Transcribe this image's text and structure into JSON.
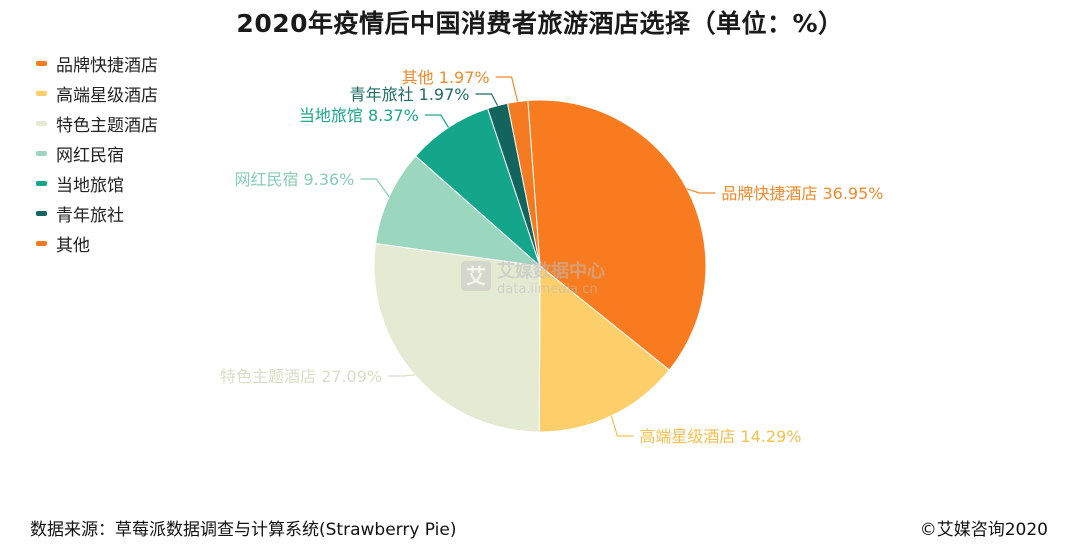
{
  "header": {
    "title": "2020年疫情后中国消费者旅游酒店选择（单位：%）"
  },
  "footer": {
    "source": "数据来源：草莓派数据调查与计算系统(Strawberry Pie)",
    "copyright": "©艾媒咨询2020"
  },
  "watermark": {
    "name": "艾媒数据中心",
    "url": "data.iimedia.cn",
    "glyph": "艾"
  },
  "chart_data": {
    "type": "pie",
    "title": "2020年疫情后中国消费者旅游酒店选择（单位：%）",
    "legend_position": "top-left",
    "slices": [
      {
        "name": "品牌快捷酒店",
        "value": 36.95,
        "label": "品牌快捷酒店 36.95%",
        "color": "#F97B1F",
        "text_color": "#F08A2A"
      },
      {
        "name": "高端星级酒店",
        "value": 14.29,
        "label": "高端星级酒店 14.29%",
        "color": "#FDCF6A",
        "text_color": "#F5C04E"
      },
      {
        "name": "特色主题酒店",
        "value": 27.09,
        "label": "特色主题酒店 27.09%",
        "color": "#E5EBD3",
        "text_color": "#D9DFC6"
      },
      {
        "name": "网红民宿",
        "value": 9.36,
        "label": "网红民宿 9.36%",
        "color": "#9BD6BF",
        "text_color": "#86CDB2"
      },
      {
        "name": "当地旅馆",
        "value": 8.37,
        "label": "当地旅馆 8.37%",
        "color": "#14A68A",
        "text_color": "#1AA88C"
      },
      {
        "name": "青年旅社",
        "value": 1.97,
        "label": "青年旅社 1.97%",
        "color": "#14645E",
        "text_color": "#1F6B66"
      },
      {
        "name": "其他",
        "value": 1.97,
        "label": "其他 1.97%",
        "color": "#F47A22",
        "text_color": "#F08A2A"
      }
    ]
  }
}
